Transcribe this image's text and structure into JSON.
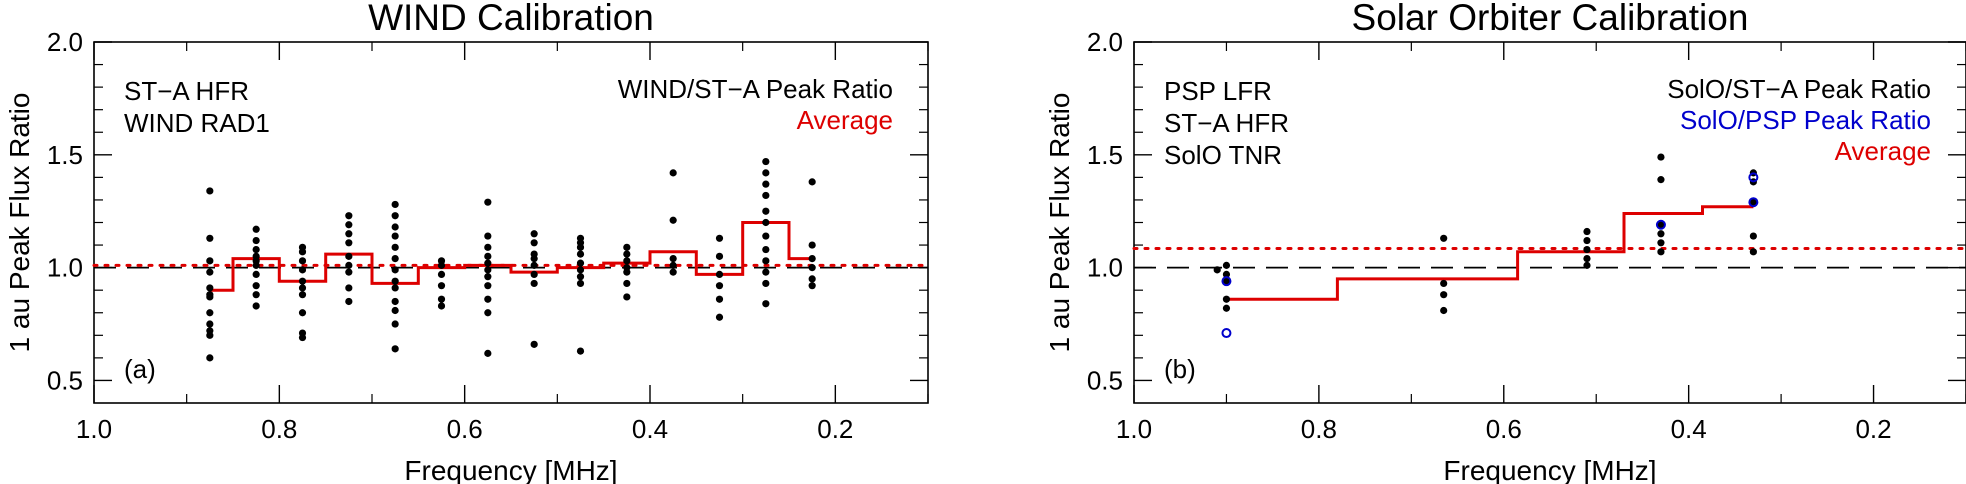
{
  "colors": {
    "black": "#000000",
    "red": "#dd0000",
    "blue": "#0000cc"
  },
  "chart_data": [
    {
      "type": "scatter",
      "panel": "(a)",
      "title": "WIND Calibration",
      "xlabel": "Frequency [MHz]",
      "ylabel": "1 au Peak Flux Ratio",
      "xlim": [
        1.0,
        0.1
      ],
      "ylim": [
        0.4,
        2.0
      ],
      "xticks": [
        1.0,
        0.8,
        0.6,
        0.4,
        0.2
      ],
      "xticklabels": [
        "1.0",
        "0.8",
        "0.6",
        "0.4",
        "0.2"
      ],
      "yticks": [
        0.5,
        1.0,
        1.5,
        2.0
      ],
      "yticklabels": [
        "0.5",
        "1.0",
        "1.5",
        "2.0"
      ],
      "instruments": [
        "ST−A HFR",
        "WIND RAD1"
      ],
      "legend": [
        {
          "label": "WIND/ST−A Peak Ratio",
          "color": "black"
        },
        {
          "label": "Average",
          "color": "red"
        }
      ],
      "reference_line": 1.0,
      "overall_average": 1.01,
      "points": [
        {
          "x": 0.875,
          "y": [
            0.6,
            0.7,
            0.72,
            0.75,
            0.8,
            0.87,
            0.88,
            0.91,
            0.98,
            1.03,
            1.13,
            1.34
          ]
        },
        {
          "x": 0.825,
          "y": [
            0.83,
            0.88,
            0.92,
            0.97,
            1.01,
            1.03,
            1.05,
            1.08,
            1.12,
            1.17
          ]
        },
        {
          "x": 0.775,
          "y": [
            0.69,
            0.71,
            0.8,
            0.88,
            0.91,
            0.94,
            0.99,
            1.03,
            1.07,
            1.09
          ]
        },
        {
          "x": 0.725,
          "y": [
            0.85,
            0.91,
            0.98,
            1.01,
            1.05,
            1.11,
            1.15,
            1.19,
            1.23
          ]
        },
        {
          "x": 0.675,
          "y": [
            0.64,
            0.75,
            0.81,
            0.85,
            0.91,
            0.94,
            0.99,
            1.04,
            1.09,
            1.14,
            1.18,
            1.23,
            1.28
          ]
        },
        {
          "x": 0.625,
          "y": [
            0.83,
            0.86,
            0.92,
            0.97,
            1.01,
            1.03
          ]
        },
        {
          "x": 0.575,
          "y": [
            0.62,
            0.8,
            0.86,
            0.92,
            0.96,
            0.99,
            1.02,
            1.05,
            1.09,
            1.14,
            1.29
          ]
        },
        {
          "x": 0.525,
          "y": [
            0.66,
            0.93,
            0.97,
            1.01,
            1.04,
            1.06,
            1.11,
            1.15
          ]
        },
        {
          "x": 0.475,
          "y": [
            0.63,
            0.93,
            0.96,
            0.99,
            1.02,
            1.06,
            1.09,
            1.11,
            1.13
          ]
        },
        {
          "x": 0.425,
          "y": [
            0.87,
            0.93,
            0.98,
            1.0,
            1.03,
            1.06,
            1.09
          ]
        },
        {
          "x": 0.375,
          "y": [
            0.98,
            1.01,
            1.04,
            1.21,
            1.42
          ]
        },
        {
          "x": 0.325,
          "y": [
            0.78,
            0.86,
            0.92,
            0.97,
            1.05,
            1.13
          ]
        },
        {
          "x": 0.275,
          "y": [
            0.84,
            0.93,
            0.98,
            1.03,
            1.08,
            1.14,
            1.2,
            1.25,
            1.32,
            1.37,
            1.42,
            1.47
          ]
        },
        {
          "x": 0.225,
          "y": [
            0.92,
            0.95,
            1.0,
            1.04,
            1.1,
            1.38
          ]
        }
      ],
      "average_steps": [
        {
          "x0": 0.875,
          "x1": 0.85,
          "y": 0.9
        },
        {
          "x0": 0.85,
          "x1": 0.8,
          "y": 1.04
        },
        {
          "x0": 0.8,
          "x1": 0.75,
          "y": 0.94
        },
        {
          "x0": 0.75,
          "x1": 0.7,
          "y": 1.06
        },
        {
          "x0": 0.7,
          "x1": 0.65,
          "y": 0.93
        },
        {
          "x0": 0.65,
          "x1": 0.6,
          "y": 1.0
        },
        {
          "x0": 0.6,
          "x1": 0.55,
          "y": 1.01
        },
        {
          "x0": 0.55,
          "x1": 0.5,
          "y": 0.98
        },
        {
          "x0": 0.5,
          "x1": 0.45,
          "y": 1.0
        },
        {
          "x0": 0.45,
          "x1": 0.4,
          "y": 1.02
        },
        {
          "x0": 0.4,
          "x1": 0.35,
          "y": 1.07
        },
        {
          "x0": 0.35,
          "x1": 0.3,
          "y": 0.97
        },
        {
          "x0": 0.3,
          "x1": 0.25,
          "y": 1.2
        },
        {
          "x0": 0.25,
          "x1": 0.225,
          "y": 1.04
        }
      ]
    },
    {
      "type": "scatter",
      "panel": "(b)",
      "title": "Solar Orbiter Calibration",
      "xlabel": "Frequency [MHz]",
      "ylabel": "1 au Peak Flux Ratio",
      "xlim": [
        1.0,
        0.1
      ],
      "ylim": [
        0.4,
        2.0
      ],
      "xticks": [
        1.0,
        0.8,
        0.6,
        0.4,
        0.2
      ],
      "xticklabels": [
        "1.0",
        "0.8",
        "0.6",
        "0.4",
        "0.2"
      ],
      "yticks": [
        0.5,
        1.0,
        1.5,
        2.0
      ],
      "yticklabels": [
        "0.5",
        "1.0",
        "1.5",
        "2.0"
      ],
      "instruments": [
        "PSP LFR",
        "ST−A HFR",
        "SolO TNR"
      ],
      "legend": [
        {
          "label": "SolO/ST−A Peak Ratio",
          "color": "black"
        },
        {
          "label": "SolO/PSP Peak Ratio",
          "color": "blue"
        },
        {
          "label": "Average",
          "color": "red"
        }
      ],
      "reference_line": 1.0,
      "overall_average": 1.085,
      "points": [
        {
          "x": 0.91,
          "y": [
            0.99
          ]
        },
        {
          "x": 0.9,
          "y": [
            0.82,
            0.86,
            0.94,
            0.97,
            1.01
          ]
        },
        {
          "x": 0.665,
          "y": [
            0.81,
            0.88,
            0.93,
            1.13
          ]
        },
        {
          "x": 0.51,
          "y": [
            1.01,
            1.04,
            1.08,
            1.12,
            1.16
          ]
        },
        {
          "x": 0.43,
          "y": [
            1.07,
            1.11,
            1.15,
            1.19,
            1.39,
            1.49
          ]
        },
        {
          "x": 0.33,
          "y": [
            1.07,
            1.14,
            1.29,
            1.38,
            1.42
          ]
        }
      ],
      "psp_points": [
        {
          "x": 0.9,
          "y": [
            0.71,
            0.94
          ]
        },
        {
          "x": 0.43,
          "y": [
            1.19
          ]
        },
        {
          "x": 0.33,
          "y": [
            1.29,
            1.4
          ]
        }
      ],
      "average_steps": [
        {
          "x0": 0.9,
          "x1": 0.78,
          "y": 0.86
        },
        {
          "x0": 0.78,
          "x1": 0.585,
          "y": 0.95
        },
        {
          "x0": 0.585,
          "x1": 0.47,
          "y": 1.07
        },
        {
          "x0": 0.47,
          "x1": 0.385,
          "y": 1.24
        },
        {
          "x0": 0.385,
          "x1": 0.33,
          "y": 1.27
        }
      ]
    }
  ]
}
